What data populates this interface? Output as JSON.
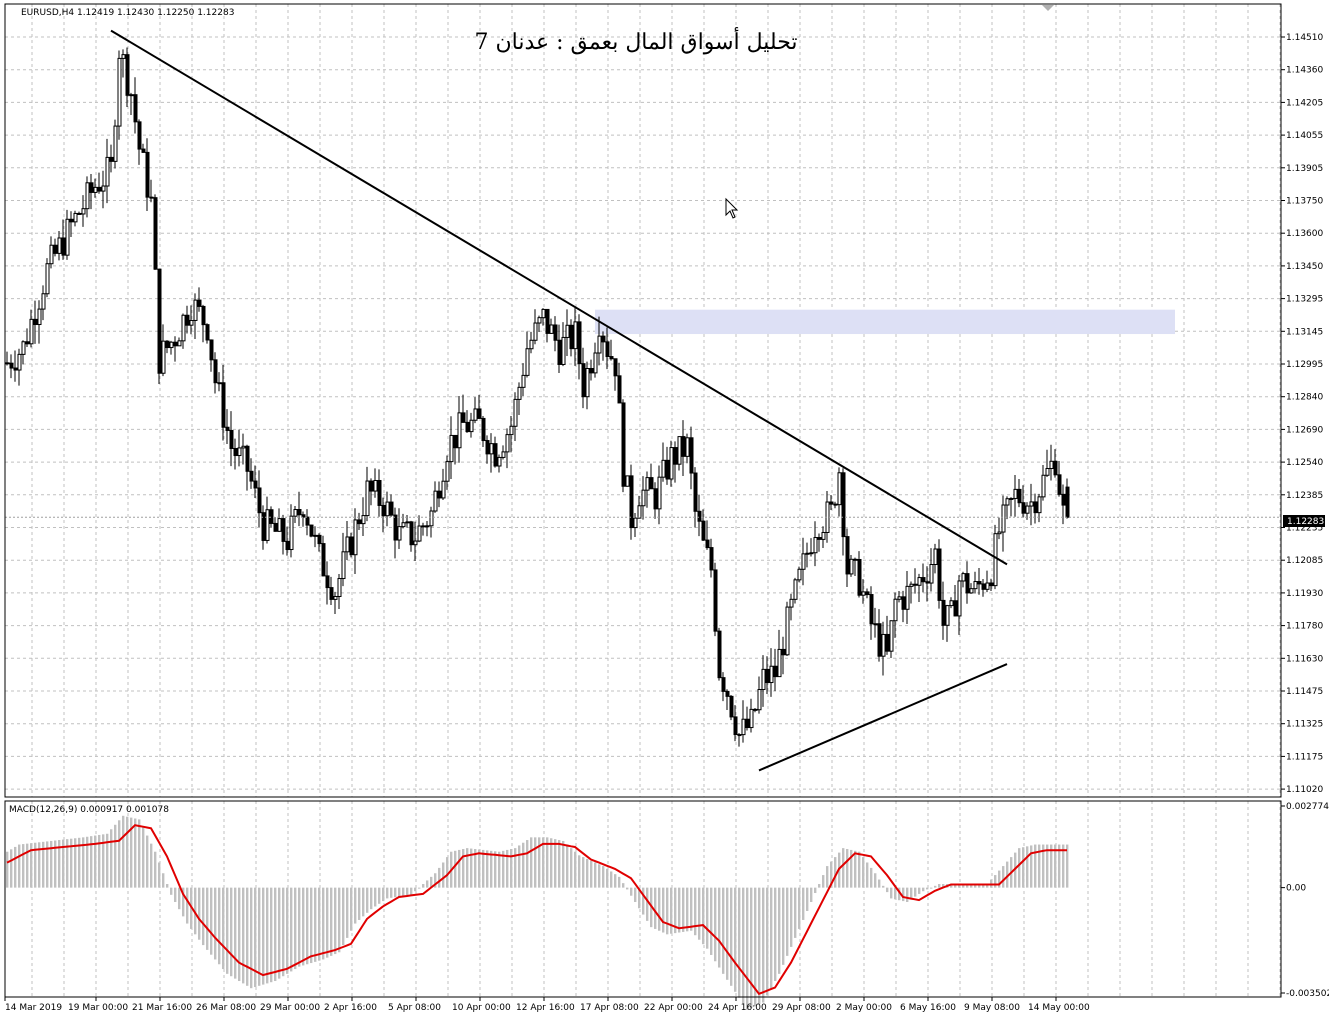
{
  "window": {
    "symbol_header": "EURUSD,H4  1.12419 1.12430 1.12250 1.12283",
    "title_overlay": "تحليل أسواق المال بعمق : عدنان 7"
  },
  "price_panel": {
    "current_price": "1.12283",
    "y_ticks": [
      "1.14510",
      "1.14360",
      "1.14205",
      "1.14055",
      "1.13905",
      "1.13750",
      "1.13600",
      "1.13450",
      "1.13295",
      "1.13145",
      "1.12995",
      "1.12840",
      "1.12690",
      "1.12540",
      "1.12385",
      "1.12235",
      "1.12085",
      "1.11930",
      "1.11780",
      "1.11630",
      "1.11475",
      "1.11325",
      "1.11175",
      "1.11020"
    ]
  },
  "macd_panel": {
    "header": "MACD(12,26,9) 0.000917 0.001078",
    "y_ticks": [
      "0.002774",
      "0.00",
      "-0.003502"
    ]
  },
  "x_ticks": [
    "14 Mar 2019",
    "19 Mar 00:00",
    "21 Mar 16:00",
    "26 Mar 08:00",
    "29 Mar 00:00",
    "2 Apr 16:00",
    "5 Apr 08:00",
    "10 Apr 00:00",
    "12 Apr 16:00",
    "17 Apr 08:00",
    "22 Apr 00:00",
    "24 Apr 16:00",
    "29 Apr 08:00",
    "2 May 00:00",
    "6 May 16:00",
    "9 May 08:00",
    "14 May 00:00"
  ],
  "colors": {
    "background": "#ffffff",
    "grid": "#c0c0c0",
    "candles": "#000000",
    "trendlines": "#000000",
    "zone": "#dde0f5",
    "macd_histogram": "#c0c0c0",
    "macd_signal": "#e00000",
    "price_label_bg": "#000000"
  },
  "chart_data": {
    "type": "candlestick",
    "symbol": "EURUSD",
    "timeframe": "H4",
    "last_bar": {
      "open": 1.12419,
      "high": 1.1243,
      "low": 1.1225,
      "close": 1.12283
    },
    "ylim": [
      1.1102,
      1.146
    ],
    "close_path_anchors": [
      [
        0,
        1.1298
      ],
      [
        4,
        1.1305
      ],
      [
        10,
        1.134
      ],
      [
        16,
        1.136
      ],
      [
        22,
        1.1378
      ],
      [
        26,
        1.1385
      ],
      [
        28,
        1.144
      ],
      [
        31,
        1.142
      ],
      [
        33,
        1.1395
      ],
      [
        36,
        1.137
      ],
      [
        38,
        1.13
      ],
      [
        42,
        1.131
      ],
      [
        46,
        1.1325
      ],
      [
        50,
        1.1315
      ],
      [
        52,
        1.129
      ],
      [
        56,
        1.126
      ],
      [
        60,
        1.125
      ],
      [
        64,
        1.1225
      ],
      [
        70,
        1.1218
      ],
      [
        74,
        1.1235
      ],
      [
        78,
        1.121
      ],
      [
        82,
        1.1195
      ],
      [
        86,
        1.1218
      ],
      [
        90,
        1.124
      ],
      [
        94,
        1.1235
      ],
      [
        98,
        1.122
      ],
      [
        102,
        1.122
      ],
      [
        106,
        1.123
      ],
      [
        110,
        1.126
      ],
      [
        114,
        1.127
      ],
      [
        118,
        1.127
      ],
      [
        122,
        1.1258
      ],
      [
        126,
        1.127
      ],
      [
        130,
        1.1305
      ],
      [
        134,
        1.1318
      ],
      [
        138,
        1.1305
      ],
      [
        142,
        1.131
      ],
      [
        144,
        1.1288
      ],
      [
        146,
        1.13
      ],
      [
        148,
        1.1318
      ],
      [
        150,
        1.1305
      ],
      [
        152,
        1.1298
      ],
      [
        154,
        1.125
      ],
      [
        156,
        1.1228
      ],
      [
        158,
        1.124
      ],
      [
        162,
        1.1238
      ],
      [
        166,
        1.1255
      ],
      [
        170,
        1.126
      ],
      [
        172,
        1.123
      ],
      [
        174,
        1.1215
      ],
      [
        176,
        1.1205
      ],
      [
        178,
        1.116
      ],
      [
        180,
        1.115
      ],
      [
        183,
        1.113
      ],
      [
        186,
        1.1135
      ],
      [
        189,
        1.1155
      ],
      [
        192,
        1.1158
      ],
      [
        195,
        1.118
      ],
      [
        198,
        1.12
      ],
      [
        202,
        1.1225
      ],
      [
        206,
        1.123
      ],
      [
        208,
        1.125
      ],
      [
        210,
        1.1205
      ],
      [
        213,
        1.12
      ],
      [
        216,
        1.118
      ],
      [
        218,
        1.1172
      ],
      [
        220,
        1.1165
      ],
      [
        222,
        1.119
      ],
      [
        226,
        1.1195
      ],
      [
        230,
        1.1205
      ],
      [
        232,
        1.1212
      ],
      [
        234,
        1.118
      ],
      [
        236,
        1.1183
      ],
      [
        238,
        1.12
      ],
      [
        242,
        1.1195
      ],
      [
        244,
        1.12
      ],
      [
        246,
        1.1205
      ],
      [
        248,
        1.1222
      ],
      [
        250,
        1.123
      ],
      [
        252,
        1.1238
      ],
      [
        256,
        1.1235
      ],
      [
        260,
        1.1248
      ],
      [
        262,
        1.1255
      ],
      [
        264,
        1.123
      ],
      [
        265,
        1.1228
      ]
    ],
    "trendlines": [
      {
        "name": "descending resistance",
        "from": {
          "bar": 26,
          "price": 1.1448
        },
        "to": {
          "bar": 250,
          "price": 1.1207
        }
      },
      {
        "name": "ascending support",
        "from": {
          "bar": 188,
          "price": 1.1114
        },
        "to": {
          "bar": 250,
          "price": 1.1162
        }
      }
    ],
    "zone": {
      "from_bar": 147,
      "to_bar": 292,
      "price_top": 1.1322,
      "price_bottom": 1.1311
    },
    "macd": {
      "fast": 12,
      "slow": 26,
      "signal": 9,
      "main": 0.000917,
      "signal_value": 0.001078,
      "ylim": [
        -0.003502,
        0.002774
      ],
      "signal_anchors": [
        [
          0,
          0.0008
        ],
        [
          6,
          0.0012
        ],
        [
          14,
          0.0013
        ],
        [
          22,
          0.0014
        ],
        [
          28,
          0.0015
        ],
        [
          32,
          0.002
        ],
        [
          36,
          0.0019
        ],
        [
          40,
          0.001
        ],
        [
          44,
          -0.0002
        ],
        [
          48,
          -0.001
        ],
        [
          52,
          -0.0016
        ],
        [
          58,
          -0.0024
        ],
        [
          64,
          -0.0028
        ],
        [
          70,
          -0.0026
        ],
        [
          76,
          -0.0022
        ],
        [
          82,
          -0.002
        ],
        [
          86,
          -0.0018
        ],
        [
          90,
          -0.001
        ],
        [
          94,
          -0.0006
        ],
        [
          98,
          -0.0003
        ],
        [
          104,
          -0.0002
        ],
        [
          110,
          0.0004
        ],
        [
          114,
          0.001
        ],
        [
          118,
          0.0011
        ],
        [
          126,
          0.001
        ],
        [
          130,
          0.0011
        ],
        [
          134,
          0.0014
        ],
        [
          138,
          0.0014
        ],
        [
          142,
          0.0013
        ],
        [
          146,
          0.0009
        ],
        [
          152,
          0.0006
        ],
        [
          156,
          0.0003
        ],
        [
          160,
          -0.0004
        ],
        [
          164,
          -0.0011
        ],
        [
          168,
          -0.0013
        ],
        [
          174,
          -0.0012
        ],
        [
          178,
          -0.0017
        ],
        [
          182,
          -0.0024
        ],
        [
          188,
          -0.0034
        ],
        [
          192,
          -0.0032
        ],
        [
          196,
          -0.0024
        ],
        [
          200,
          -0.0014
        ],
        [
          204,
          -0.0004
        ],
        [
          208,
          0.0006
        ],
        [
          212,
          0.0011
        ],
        [
          216,
          0.001
        ],
        [
          220,
          0.0004
        ],
        [
          224,
          -0.0003
        ],
        [
          228,
          -0.0004
        ],
        [
          232,
          -0.0001
        ],
        [
          236,
          0.0001
        ],
        [
          240,
          0.0001
        ],
        [
          244,
          0.0001
        ],
        [
          248,
          0.0001
        ],
        [
          252,
          0.0006
        ],
        [
          256,
          0.0011
        ],
        [
          260,
          0.0012
        ],
        [
          265,
          0.0012
        ]
      ]
    }
  }
}
